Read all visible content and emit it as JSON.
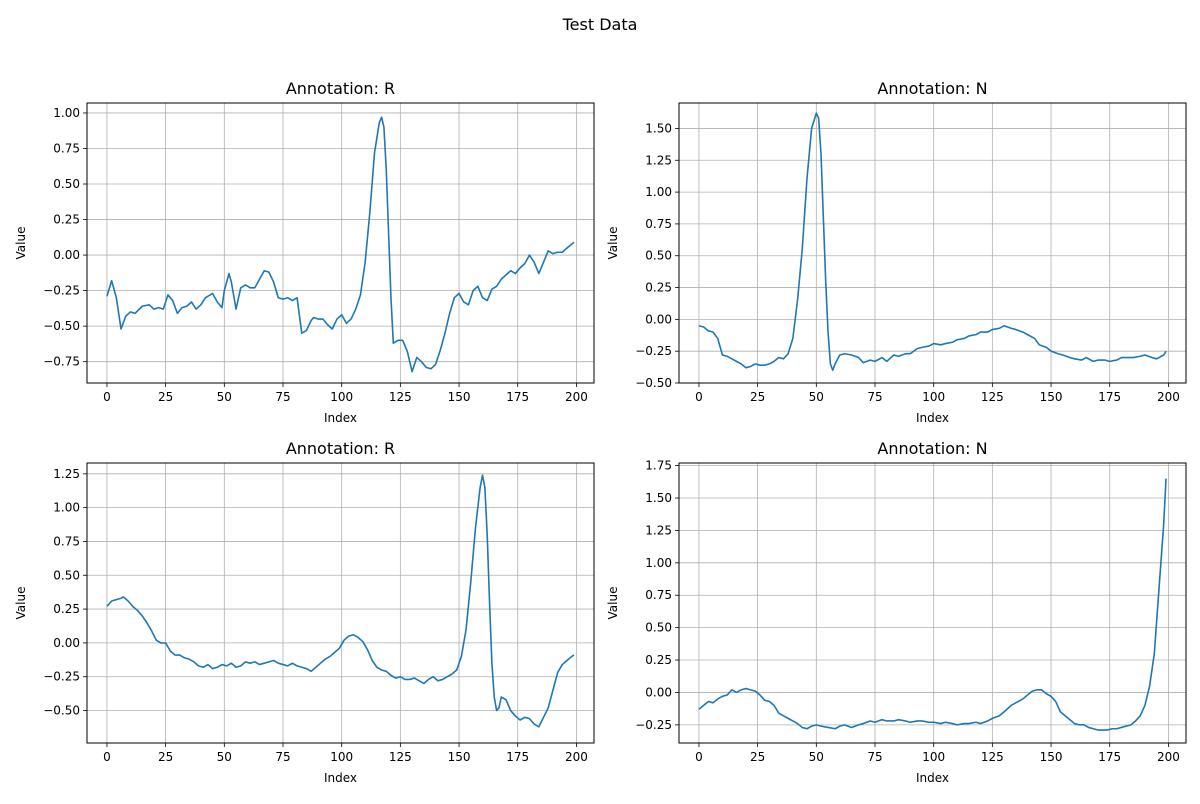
{
  "figure": {
    "suptitle": "Test Data"
  },
  "chart_data": [
    {
      "type": "line",
      "title": "Annotation: R",
      "xlabel": "Index",
      "ylabel": "Value",
      "xlim": [
        -8.5,
        207.5
      ],
      "ylim": [
        -0.9,
        1.07
      ],
      "xticks": [
        0,
        25,
        50,
        75,
        100,
        125,
        150,
        175,
        200
      ],
      "yticks": [
        -0.75,
        -0.5,
        -0.25,
        0.0,
        0.25,
        0.5,
        0.75,
        1.0
      ],
      "ytick_labels": [
        "−0.75",
        "−0.50",
        "−0.25",
        "0.00",
        "0.25",
        "0.50",
        "0.75",
        "1.00"
      ],
      "grid": true,
      "color": "#1f77b4",
      "series": [
        {
          "x": [
            0,
            2,
            4,
            6,
            8,
            10,
            12,
            15,
            18,
            20,
            22,
            24,
            26,
            28,
            30,
            32,
            34,
            36,
            38,
            40,
            42,
            45,
            47,
            49,
            50,
            52,
            53,
            55,
            57,
            59,
            61,
            63,
            65,
            67,
            69,
            71,
            73,
            75,
            77,
            79,
            81,
            83,
            85,
            87,
            88,
            90,
            92,
            94,
            96,
            98,
            100,
            102,
            104,
            106,
            108,
            110,
            112,
            114,
            116,
            117,
            118,
            119,
            120,
            121,
            122,
            124,
            126,
            128,
            130,
            132,
            134,
            136,
            138,
            140,
            142,
            144,
            146,
            148,
            150,
            152,
            154,
            156,
            158,
            160,
            162,
            164,
            166,
            168,
            170,
            172,
            174,
            176,
            178,
            180,
            182,
            184,
            186,
            188,
            190,
            192,
            194,
            196,
            199
          ],
          "y": [
            -0.29,
            -0.18,
            -0.3,
            -0.52,
            -0.43,
            -0.4,
            -0.41,
            -0.36,
            -0.35,
            -0.38,
            -0.37,
            -0.38,
            -0.28,
            -0.32,
            -0.41,
            -0.37,
            -0.36,
            -0.33,
            -0.38,
            -0.35,
            -0.3,
            -0.27,
            -0.33,
            -0.37,
            -0.25,
            -0.13,
            -0.19,
            -0.38,
            -0.23,
            -0.21,
            -0.23,
            -0.23,
            -0.17,
            -0.11,
            -0.12,
            -0.19,
            -0.3,
            -0.31,
            -0.3,
            -0.32,
            -0.3,
            -0.55,
            -0.53,
            -0.46,
            -0.44,
            -0.45,
            -0.45,
            -0.49,
            -0.52,
            -0.45,
            -0.42,
            -0.48,
            -0.45,
            -0.38,
            -0.28,
            -0.05,
            0.3,
            0.72,
            0.93,
            0.97,
            0.9,
            0.6,
            0.15,
            -0.3,
            -0.62,
            -0.6,
            -0.6,
            -0.68,
            -0.82,
            -0.72,
            -0.75,
            -0.79,
            -0.8,
            -0.77,
            -0.67,
            -0.55,
            -0.41,
            -0.3,
            -0.27,
            -0.33,
            -0.35,
            -0.25,
            -0.22,
            -0.3,
            -0.32,
            -0.24,
            -0.22,
            -0.17,
            -0.14,
            -0.11,
            -0.13,
            -0.09,
            -0.06,
            0.0,
            -0.05,
            -0.13,
            -0.05,
            0.03,
            0.01,
            0.02,
            0.02,
            0.05,
            0.09
          ]
        }
      ]
    },
    {
      "type": "line",
      "title": "Annotation: N",
      "xlabel": "Index",
      "ylabel": "Value",
      "xlim": [
        -8.5,
        207.5
      ],
      "ylim": [
        -0.5,
        1.7
      ],
      "xticks": [
        0,
        25,
        50,
        75,
        100,
        125,
        150,
        175,
        200
      ],
      "yticks": [
        -0.5,
        -0.25,
        0.0,
        0.25,
        0.5,
        0.75,
        1.0,
        1.25,
        1.5
      ],
      "ytick_labels": [
        "−0.50",
        "−0.25",
        "0.00",
        "0.25",
        "0.50",
        "0.75",
        "1.00",
        "1.25",
        "1.50"
      ],
      "grid": true,
      "color": "#1f77b4",
      "series": [
        {
          "x": [
            0,
            2,
            4,
            6,
            8,
            10,
            12,
            14,
            16,
            18,
            20,
            22,
            24,
            26,
            28,
            30,
            32,
            34,
            36,
            38,
            40,
            42,
            44,
            46,
            48,
            50,
            51,
            52,
            53,
            54,
            55,
            56,
            57,
            58,
            60,
            62,
            65,
            68,
            70,
            73,
            75,
            78,
            80,
            83,
            85,
            88,
            90,
            93,
            95,
            98,
            100,
            103,
            105,
            108,
            110,
            113,
            115,
            118,
            120,
            123,
            125,
            128,
            130,
            133,
            135,
            138,
            140,
            143,
            145,
            148,
            150,
            153,
            155,
            158,
            160,
            163,
            165,
            168,
            170,
            173,
            175,
            178,
            180,
            183,
            185,
            188,
            190,
            193,
            195,
            198,
            199
          ],
          "y": [
            -0.05,
            -0.06,
            -0.09,
            -0.1,
            -0.15,
            -0.28,
            -0.29,
            -0.31,
            -0.33,
            -0.35,
            -0.38,
            -0.37,
            -0.35,
            -0.36,
            -0.36,
            -0.35,
            -0.33,
            -0.3,
            -0.31,
            -0.27,
            -0.15,
            0.15,
            0.55,
            1.1,
            1.5,
            1.62,
            1.58,
            1.3,
            0.8,
            0.3,
            -0.1,
            -0.35,
            -0.4,
            -0.35,
            -0.28,
            -0.27,
            -0.28,
            -0.3,
            -0.34,
            -0.32,
            -0.33,
            -0.3,
            -0.33,
            -0.28,
            -0.29,
            -0.27,
            -0.27,
            -0.23,
            -0.22,
            -0.21,
            -0.19,
            -0.2,
            -0.19,
            -0.18,
            -0.16,
            -0.15,
            -0.13,
            -0.12,
            -0.1,
            -0.1,
            -0.08,
            -0.07,
            -0.05,
            -0.07,
            -0.08,
            -0.1,
            -0.12,
            -0.15,
            -0.2,
            -0.22,
            -0.25,
            -0.27,
            -0.28,
            -0.3,
            -0.31,
            -0.32,
            -0.3,
            -0.33,
            -0.32,
            -0.32,
            -0.33,
            -0.32,
            -0.3,
            -0.3,
            -0.3,
            -0.29,
            -0.28,
            -0.3,
            -0.31,
            -0.28,
            -0.25
          ]
        }
      ]
    },
    {
      "type": "line",
      "title": "Annotation: R",
      "xlabel": "Index",
      "ylabel": "Value",
      "xlim": [
        -8.5,
        207.5
      ],
      "ylim": [
        -0.74,
        1.33
      ],
      "xticks": [
        0,
        25,
        50,
        75,
        100,
        125,
        150,
        175,
        200
      ],
      "yticks": [
        -0.5,
        -0.25,
        0.0,
        0.25,
        0.5,
        0.75,
        1.0,
        1.25
      ],
      "ytick_labels": [
        "−0.50",
        "−0.25",
        "0.00",
        "0.25",
        "0.50",
        "0.75",
        "1.00",
        "1.25"
      ],
      "grid": true,
      "color": "#1f77b4",
      "series": [
        {
          "x": [
            0,
            2,
            4,
            6,
            7,
            9,
            11,
            13,
            15,
            17,
            19,
            21,
            23,
            25,
            27,
            29,
            31,
            33,
            35,
            37,
            39,
            41,
            43,
            45,
            47,
            49,
            51,
            53,
            55,
            57,
            59,
            61,
            63,
            65,
            67,
            69,
            71,
            73,
            75,
            77,
            79,
            81,
            83,
            85,
            87,
            89,
            91,
            93,
            95,
            97,
            99,
            101,
            103,
            105,
            107,
            109,
            111,
            113,
            115,
            117,
            119,
            121,
            123,
            125,
            127,
            129,
            131,
            133,
            135,
            137,
            139,
            141,
            143,
            145,
            147,
            149,
            151,
            153,
            155,
            157,
            159,
            160,
            161,
            162,
            163,
            164,
            165,
            166,
            167,
            168,
            170,
            172,
            174,
            176,
            178,
            180,
            182,
            184,
            186,
            188,
            190,
            192,
            194,
            196,
            198,
            199
          ],
          "y": [
            0.27,
            0.31,
            0.32,
            0.33,
            0.34,
            0.31,
            0.27,
            0.24,
            0.2,
            0.15,
            0.09,
            0.02,
            0.0,
            0.0,
            -0.06,
            -0.09,
            -0.09,
            -0.11,
            -0.12,
            -0.14,
            -0.17,
            -0.18,
            -0.16,
            -0.19,
            -0.18,
            -0.16,
            -0.17,
            -0.15,
            -0.18,
            -0.17,
            -0.14,
            -0.15,
            -0.14,
            -0.16,
            -0.15,
            -0.14,
            -0.13,
            -0.15,
            -0.16,
            -0.17,
            -0.15,
            -0.17,
            -0.18,
            -0.19,
            -0.21,
            -0.18,
            -0.15,
            -0.12,
            -0.1,
            -0.07,
            -0.04,
            0.02,
            0.05,
            0.06,
            0.04,
            0.01,
            -0.05,
            -0.13,
            -0.18,
            -0.2,
            -0.21,
            -0.24,
            -0.26,
            -0.25,
            -0.27,
            -0.27,
            -0.26,
            -0.28,
            -0.3,
            -0.27,
            -0.25,
            -0.28,
            -0.27,
            -0.25,
            -0.23,
            -0.2,
            -0.1,
            0.1,
            0.45,
            0.85,
            1.15,
            1.24,
            1.15,
            0.8,
            0.3,
            -0.15,
            -0.4,
            -0.5,
            -0.48,
            -0.4,
            -0.42,
            -0.5,
            -0.54,
            -0.57,
            -0.55,
            -0.56,
            -0.6,
            -0.62,
            -0.55,
            -0.48,
            -0.35,
            -0.22,
            -0.16,
            -0.13,
            -0.1,
            -0.09
          ]
        }
      ]
    },
    {
      "type": "line",
      "title": "Annotation: N",
      "xlabel": "Index",
      "ylabel": "Value",
      "xlim": [
        -8.5,
        207.5
      ],
      "ylim": [
        -0.39,
        1.77
      ],
      "xticks": [
        0,
        25,
        50,
        75,
        100,
        125,
        150,
        175,
        200
      ],
      "yticks": [
        -0.25,
        0.0,
        0.25,
        0.5,
        0.75,
        1.0,
        1.25,
        1.5,
        1.75
      ],
      "ytick_labels": [
        "−0.25",
        "0.00",
        "0.25",
        "0.50",
        "0.75",
        "1.00",
        "1.25",
        "1.50",
        "1.75"
      ],
      "grid": true,
      "color": "#1f77b4",
      "series": [
        {
          "x": [
            0,
            2,
            4,
            6,
            8,
            10,
            12,
            14,
            16,
            18,
            20,
            22,
            24,
            26,
            28,
            30,
            32,
            34,
            36,
            38,
            40,
            42,
            44,
            46,
            48,
            50,
            52,
            55,
            58,
            60,
            62,
            65,
            68,
            70,
            73,
            75,
            78,
            80,
            83,
            85,
            88,
            90,
            93,
            95,
            98,
            100,
            103,
            105,
            108,
            110,
            113,
            115,
            118,
            120,
            123,
            125,
            128,
            130,
            133,
            135,
            138,
            140,
            142,
            144,
            146,
            148,
            150,
            152,
            154,
            156,
            158,
            160,
            162,
            164,
            166,
            168,
            170,
            172,
            174,
            176,
            178,
            180,
            182,
            184,
            186,
            188,
            190,
            192,
            194,
            196,
            198,
            199
          ],
          "y": [
            -0.13,
            -0.1,
            -0.07,
            -0.08,
            -0.05,
            -0.03,
            -0.02,
            0.02,
            0.0,
            0.02,
            0.03,
            0.02,
            0.01,
            -0.02,
            -0.06,
            -0.07,
            -0.1,
            -0.16,
            -0.18,
            -0.2,
            -0.22,
            -0.24,
            -0.27,
            -0.28,
            -0.26,
            -0.25,
            -0.26,
            -0.27,
            -0.28,
            -0.26,
            -0.25,
            -0.27,
            -0.25,
            -0.24,
            -0.22,
            -0.23,
            -0.21,
            -0.22,
            -0.22,
            -0.21,
            -0.22,
            -0.23,
            -0.22,
            -0.22,
            -0.23,
            -0.23,
            -0.24,
            -0.23,
            -0.24,
            -0.25,
            -0.24,
            -0.24,
            -0.23,
            -0.24,
            -0.22,
            -0.2,
            -0.18,
            -0.15,
            -0.1,
            -0.08,
            -0.05,
            -0.02,
            0.01,
            0.02,
            0.02,
            -0.01,
            -0.03,
            -0.07,
            -0.15,
            -0.18,
            -0.21,
            -0.24,
            -0.25,
            -0.25,
            -0.27,
            -0.28,
            -0.29,
            -0.29,
            -0.29,
            -0.28,
            -0.28,
            -0.27,
            -0.26,
            -0.25,
            -0.22,
            -0.18,
            -0.1,
            0.05,
            0.3,
            0.8,
            1.3,
            1.65
          ]
        }
      ]
    }
  ]
}
